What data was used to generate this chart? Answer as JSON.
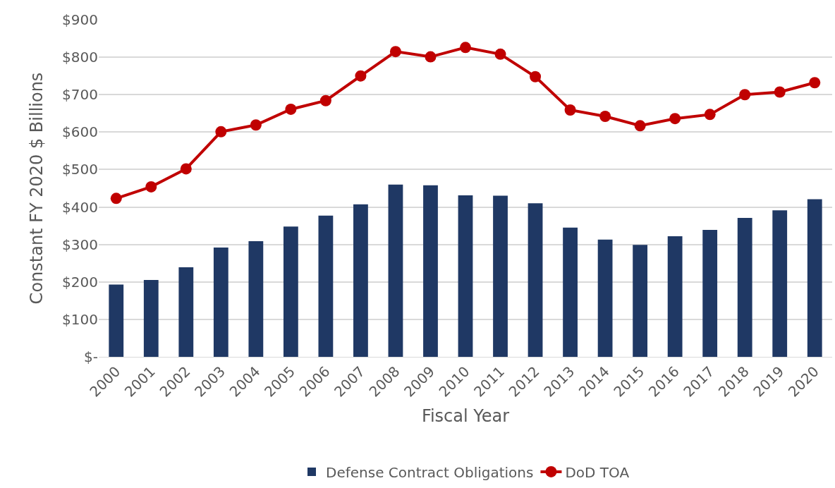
{
  "chart_data": {
    "type": "bar",
    "xlabel": "Fiscal Year",
    "ylabel": "Constant FY 2020 $ Billions",
    "categories": [
      "2000",
      "2001",
      "2002",
      "2003",
      "2004",
      "2005",
      "2006",
      "2007",
      "2008",
      "2009",
      "2010",
      "2011",
      "2012",
      "2013",
      "2014",
      "2015",
      "2016",
      "2017",
      "2018",
      "2019",
      "2020"
    ],
    "series": [
      {
        "name": "Defense Contract Obligations",
        "color": "#1f3864",
        "values": [
          193,
          205,
          239,
          292,
          309,
          348,
          377,
          407,
          460,
          458,
          431,
          430,
          410,
          345,
          313,
          299,
          322,
          339,
          371,
          391,
          421
        ]
      },
      {
        "name": "DoD TOA",
        "type": "line",
        "color": "#c00000",
        "marker": "circle",
        "values": [
          423,
          454,
          502,
          601,
          619,
          661,
          684,
          750,
          815,
          801,
          826,
          808,
          748,
          659,
          642,
          617,
          636,
          647,
          700,
          707,
          732
        ]
      }
    ],
    "ylim": [
      0,
      900
    ],
    "yticks": [
      {
        "value": 0,
        "label": "$-"
      },
      {
        "value": 100,
        "label": "$100"
      },
      {
        "value": 200,
        "label": "$200"
      },
      {
        "value": 300,
        "label": "$300"
      },
      {
        "value": 400,
        "label": "$400"
      },
      {
        "value": 500,
        "label": "$500"
      },
      {
        "value": 600,
        "label": "$600"
      },
      {
        "value": 700,
        "label": "$700"
      },
      {
        "value": 800,
        "label": "$800"
      },
      {
        "value": 900,
        "label": "$900"
      }
    ],
    "grid": "y",
    "legend": "bottom"
  }
}
